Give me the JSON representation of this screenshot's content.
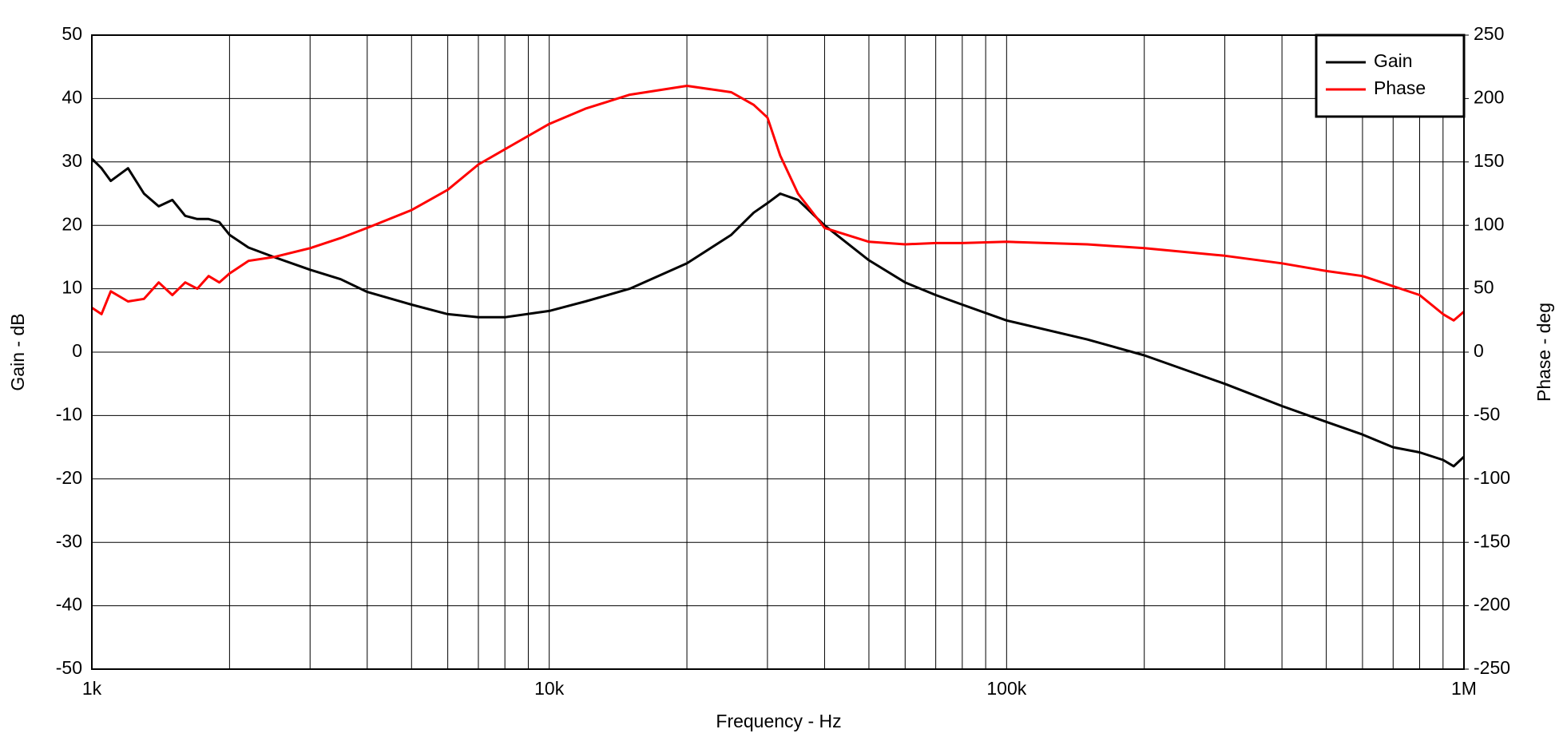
{
  "chart_data": {
    "type": "line",
    "x_label": "Frequency - Hz",
    "y_label": "Gain - dB",
    "y2_label": "Phase - deg",
    "x_scale": "log",
    "grid": true,
    "legend": "upper right",
    "x": [
      1000,
      1050,
      1100,
      1200,
      1300,
      1400,
      1500,
      1600,
      1700,
      1800,
      1900,
      2000,
      2200,
      2500,
      3000,
      3500,
      4000,
      5000,
      6000,
      7000,
      8000,
      10000,
      12000,
      15000,
      20000,
      25000,
      28000,
      30000,
      32000,
      35000,
      40000,
      50000,
      60000,
      70000,
      80000,
      100000,
      150000,
      200000,
      300000,
      400000,
      500000,
      600000,
      700000,
      800000,
      900000,
      950000,
      1000000
    ],
    "series": [
      {
        "name": "Gain",
        "color": "#000000",
        "values": [
          30.5,
          29,
          27,
          29,
          25,
          23,
          24,
          21.5,
          21,
          21,
          20.5,
          18.5,
          16.5,
          15,
          13,
          11.5,
          9.5,
          7.5,
          6,
          5.5,
          5.5,
          6.5,
          8,
          10,
          14,
          18.5,
          22,
          23.5,
          25,
          24,
          20,
          14.5,
          11,
          9,
          7.5,
          5,
          2,
          -0.5,
          -5,
          -8.5,
          -11,
          -13,
          -15,
          -15.8,
          -17,
          -18,
          -16.5
        ]
      },
      {
        "name": "Phase",
        "color": "#ff0000",
        "axis": "y2",
        "values": [
          35,
          30,
          48,
          40,
          42,
          55,
          45,
          55,
          50,
          60,
          55,
          62,
          72,
          75,
          82,
          90,
          98,
          112,
          128,
          148,
          160,
          180,
          192,
          203,
          210,
          205,
          195,
          185,
          155,
          125,
          98,
          87,
          85,
          86,
          86,
          87,
          85,
          82,
          76,
          70,
          64,
          60,
          52,
          45,
          30,
          25,
          32
        ]
      }
    ],
    "xlim": [
      1000,
      1000000
    ],
    "xticks": [
      {
        "value": 1000,
        "label": "1k"
      },
      {
        "value": 10000,
        "label": "10k"
      },
      {
        "value": 100000,
        "label": "100k"
      },
      {
        "value": 1000000,
        "label": "1M"
      }
    ],
    "ylim": [
      -50,
      50
    ],
    "yticks": [
      -50,
      -40,
      -30,
      -20,
      -10,
      0,
      10,
      20,
      30,
      40,
      50
    ],
    "y2lim": [
      -250,
      250
    ],
    "y2ticks": [
      -250,
      -200,
      -150,
      -100,
      -50,
      0,
      50,
      100,
      150,
      200,
      250
    ]
  }
}
